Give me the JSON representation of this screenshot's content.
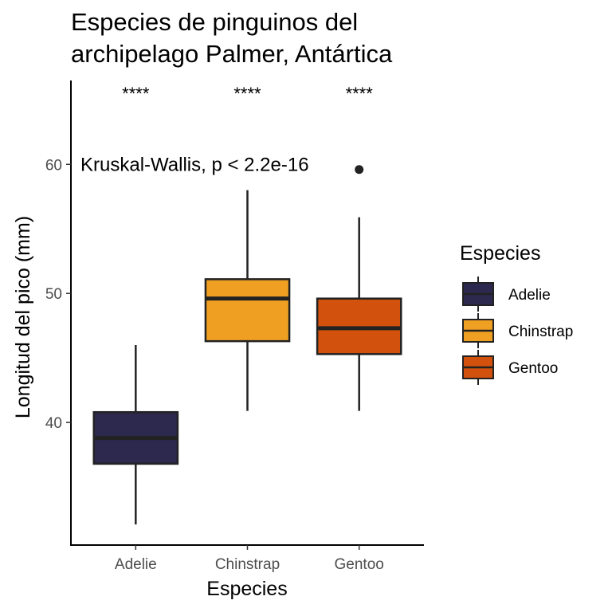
{
  "chart_data": {
    "type": "boxplot",
    "title_lines": [
      "Especies de pinguinos del",
      "archipelago Palmer, Antártica"
    ],
    "xlabel": "Especies",
    "ylabel": "Longitud del pico (mm)",
    "ylim": [
      30.5,
      66.5
    ],
    "yticks": [
      40,
      50,
      60
    ],
    "categories": [
      "Adelie",
      "Chinstrap",
      "Gentoo"
    ],
    "boxes": [
      {
        "name": "Adelie",
        "color": "#2d284d",
        "whisker_low": 32.1,
        "q1": 36.8,
        "median": 38.8,
        "q3": 40.8,
        "whisker_high": 46.0,
        "outliers": []
      },
      {
        "name": "Chinstrap",
        "color": "#efa023",
        "whisker_low": 40.9,
        "q1": 46.3,
        "median": 49.6,
        "q3": 51.1,
        "whisker_high": 58.0,
        "outliers": []
      },
      {
        "name": "Gentoo",
        "color": "#d2520d",
        "whisker_low": 40.9,
        "q1": 45.3,
        "median": 47.3,
        "q3": 49.6,
        "whisker_high": 55.9,
        "outliers": [
          59.6
        ]
      }
    ],
    "annotation": "Kruskal-Wallis, p < 2.2e-16",
    "annotation_y": 60.0,
    "significance_labels": [
      "****",
      "****",
      "****"
    ],
    "significance_y": 65.5,
    "legend": {
      "title": "Especies",
      "position": "right",
      "entries": [
        "Adelie",
        "Chinstrap",
        "Gentoo"
      ]
    },
    "grid": false
  }
}
